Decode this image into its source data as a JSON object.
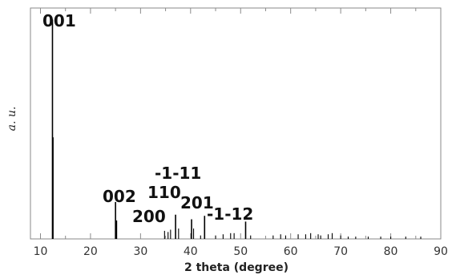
{
  "chart_data": {
    "type": "bar",
    "title": "",
    "xlabel": "2 theta (degree)",
    "ylabel": "a. u.",
    "xlim": [
      8,
      90
    ],
    "ylim": [
      0,
      100
    ],
    "x_ticks": [
      10,
      20,
      30,
      40,
      50,
      60,
      70,
      80,
      90
    ],
    "grid": false,
    "legend": "none",
    "peaks": [
      {
        "x": 12.4,
        "y": 95.0
      },
      {
        "x": 12.5,
        "y": 44.0
      },
      {
        "x": 25.0,
        "y": 16.0
      },
      {
        "x": 25.2,
        "y": 8.0
      },
      {
        "x": 34.8,
        "y": 3.5
      },
      {
        "x": 35.5,
        "y": 3.0
      },
      {
        "x": 36.0,
        "y": 4.0
      },
      {
        "x": 37.0,
        "y": 10.5
      },
      {
        "x": 37.6,
        "y": 4.5
      },
      {
        "x": 40.2,
        "y": 8.5
      },
      {
        "x": 40.6,
        "y": 4.5
      },
      {
        "x": 42.0,
        "y": 1.5
      },
      {
        "x": 42.8,
        "y": 10.0
      },
      {
        "x": 45.0,
        "y": 1.5
      },
      {
        "x": 46.5,
        "y": 2.0
      },
      {
        "x": 48.0,
        "y": 2.5
      },
      {
        "x": 48.7,
        "y": 2.5
      },
      {
        "x": 51.0,
        "y": 7.5
      },
      {
        "x": 52.0,
        "y": 1.5
      },
      {
        "x": 56.5,
        "y": 1.5
      },
      {
        "x": 58.0,
        "y": 2.0
      },
      {
        "x": 59.0,
        "y": 1.5
      },
      {
        "x": 61.5,
        "y": 2.0
      },
      {
        "x": 63.0,
        "y": 2.0
      },
      {
        "x": 64.0,
        "y": 2.5
      },
      {
        "x": 65.5,
        "y": 2.0
      },
      {
        "x": 66.0,
        "y": 1.5
      },
      {
        "x": 67.5,
        "y": 2.0
      },
      {
        "x": 68.3,
        "y": 2.5
      },
      {
        "x": 70.0,
        "y": 1.5
      },
      {
        "x": 71.5,
        "y": 1.0
      },
      {
        "x": 73.0,
        "y": 1.0
      },
      {
        "x": 75.5,
        "y": 1.0
      },
      {
        "x": 78.0,
        "y": 1.0
      },
      {
        "x": 80.0,
        "y": 1.0
      },
      {
        "x": 83.0,
        "y": 1.0
      },
      {
        "x": 86.0,
        "y": 1.0
      }
    ],
    "annotations": [
      {
        "text": "001",
        "x": 12.4,
        "y": 95.0
      },
      {
        "text": "002",
        "x": 25.0,
        "y": 16.0
      },
      {
        "text": "200",
        "x": 34.8,
        "y": 3.5
      },
      {
        "text": "110",
        "x": 37.0,
        "y": 10.5
      },
      {
        "text": "-1-11",
        "x": 37.6,
        "y": 4.5
      },
      {
        "text": "201",
        "x": 42.8,
        "y": 10.0
      },
      {
        "text": "-1-12",
        "x": 51.0,
        "y": 7.5
      }
    ]
  }
}
